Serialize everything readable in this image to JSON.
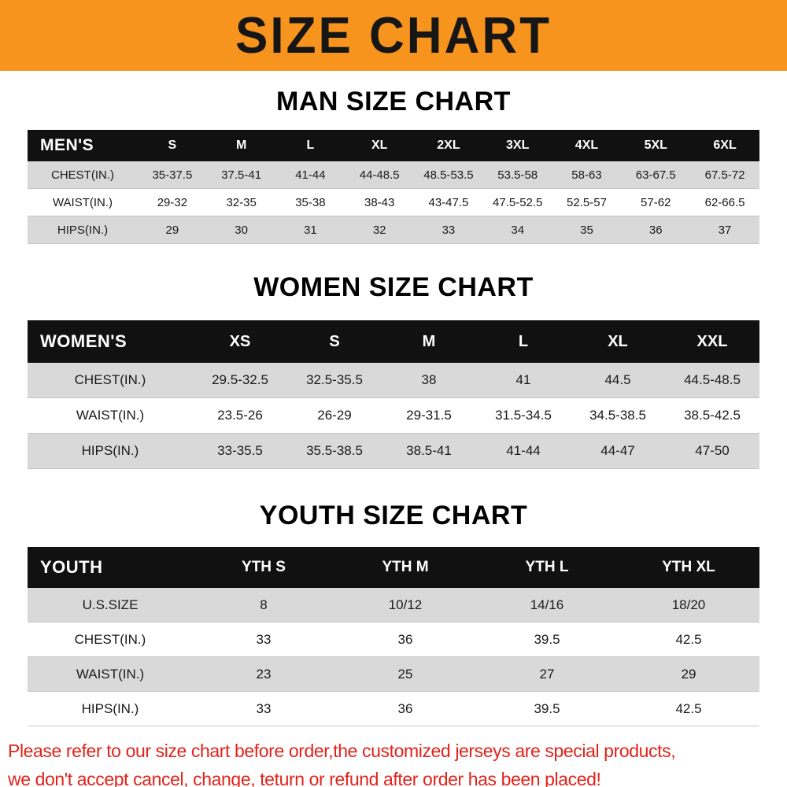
{
  "banner": {
    "title": "SIZE CHART"
  },
  "colors": {
    "banner_bg": "#f7941d",
    "table_header_bg": "#111111",
    "table_header_text": "#ffffff",
    "row_shaded_bg": "#d9d9d9",
    "notice_text": "#e2231a"
  },
  "chart_data": [
    {
      "type": "table",
      "title": "MAN SIZE CHART",
      "header": [
        "MEN'S",
        "S",
        "M",
        "L",
        "XL",
        "2XL",
        "3XL",
        "4XL",
        "5XL",
        "6XL"
      ],
      "rows": [
        [
          "CHEST(IN.)",
          "35-37.5",
          "37.5-41",
          "41-44",
          "44-48.5",
          "48.5-53.5",
          "53.5-58",
          "58-63",
          "63-67.5",
          "67.5-72"
        ],
        [
          "WAIST(IN.)",
          "29-32",
          "32-35",
          "35-38",
          "38-43",
          "43-47.5",
          "47.5-52.5",
          "52.5-57",
          "57-62",
          "62-66.5"
        ],
        [
          "HIPS(IN.)",
          "29",
          "30",
          "31",
          "32",
          "33",
          "34",
          "35",
          "36",
          "37"
        ]
      ]
    },
    {
      "type": "table",
      "title": "WOMEN SIZE CHART",
      "header": [
        "WOMEN'S",
        "XS",
        "S",
        "M",
        "L",
        "XL",
        "XXL"
      ],
      "rows": [
        [
          "CHEST(IN.)",
          "29.5-32.5",
          "32.5-35.5",
          "38",
          "41",
          "44.5",
          "44.5-48.5"
        ],
        [
          "WAIST(IN.)",
          "23.5-26",
          "26-29",
          "29-31.5",
          "31.5-34.5",
          "34.5-38.5",
          "38.5-42.5"
        ],
        [
          "HIPS(IN.)",
          "33-35.5",
          "35.5-38.5",
          "38.5-41",
          "41-44",
          "44-47",
          "47-50"
        ]
      ]
    },
    {
      "type": "table",
      "title": "YOUTH SIZE CHART",
      "header": [
        "YOUTH",
        "YTH S",
        "YTH M",
        "YTH L",
        "YTH XL"
      ],
      "rows": [
        [
          "U.S.SIZE",
          "8",
          "10/12",
          "14/16",
          "18/20"
        ],
        [
          "CHEST(IN.)",
          "33",
          "36",
          "39.5",
          "42.5"
        ],
        [
          "WAIST(IN.)",
          "23",
          "25",
          "27",
          "29"
        ],
        [
          "HIPS(IN.)",
          "33",
          "36",
          "39.5",
          "42.5"
        ]
      ]
    }
  ],
  "footer": {
    "lines": [
      "Please refer to our size chart before order,the customized jerseys are special products,",
      "we don't accept cancel, change, teturn or refund after order has been placed!"
    ]
  }
}
